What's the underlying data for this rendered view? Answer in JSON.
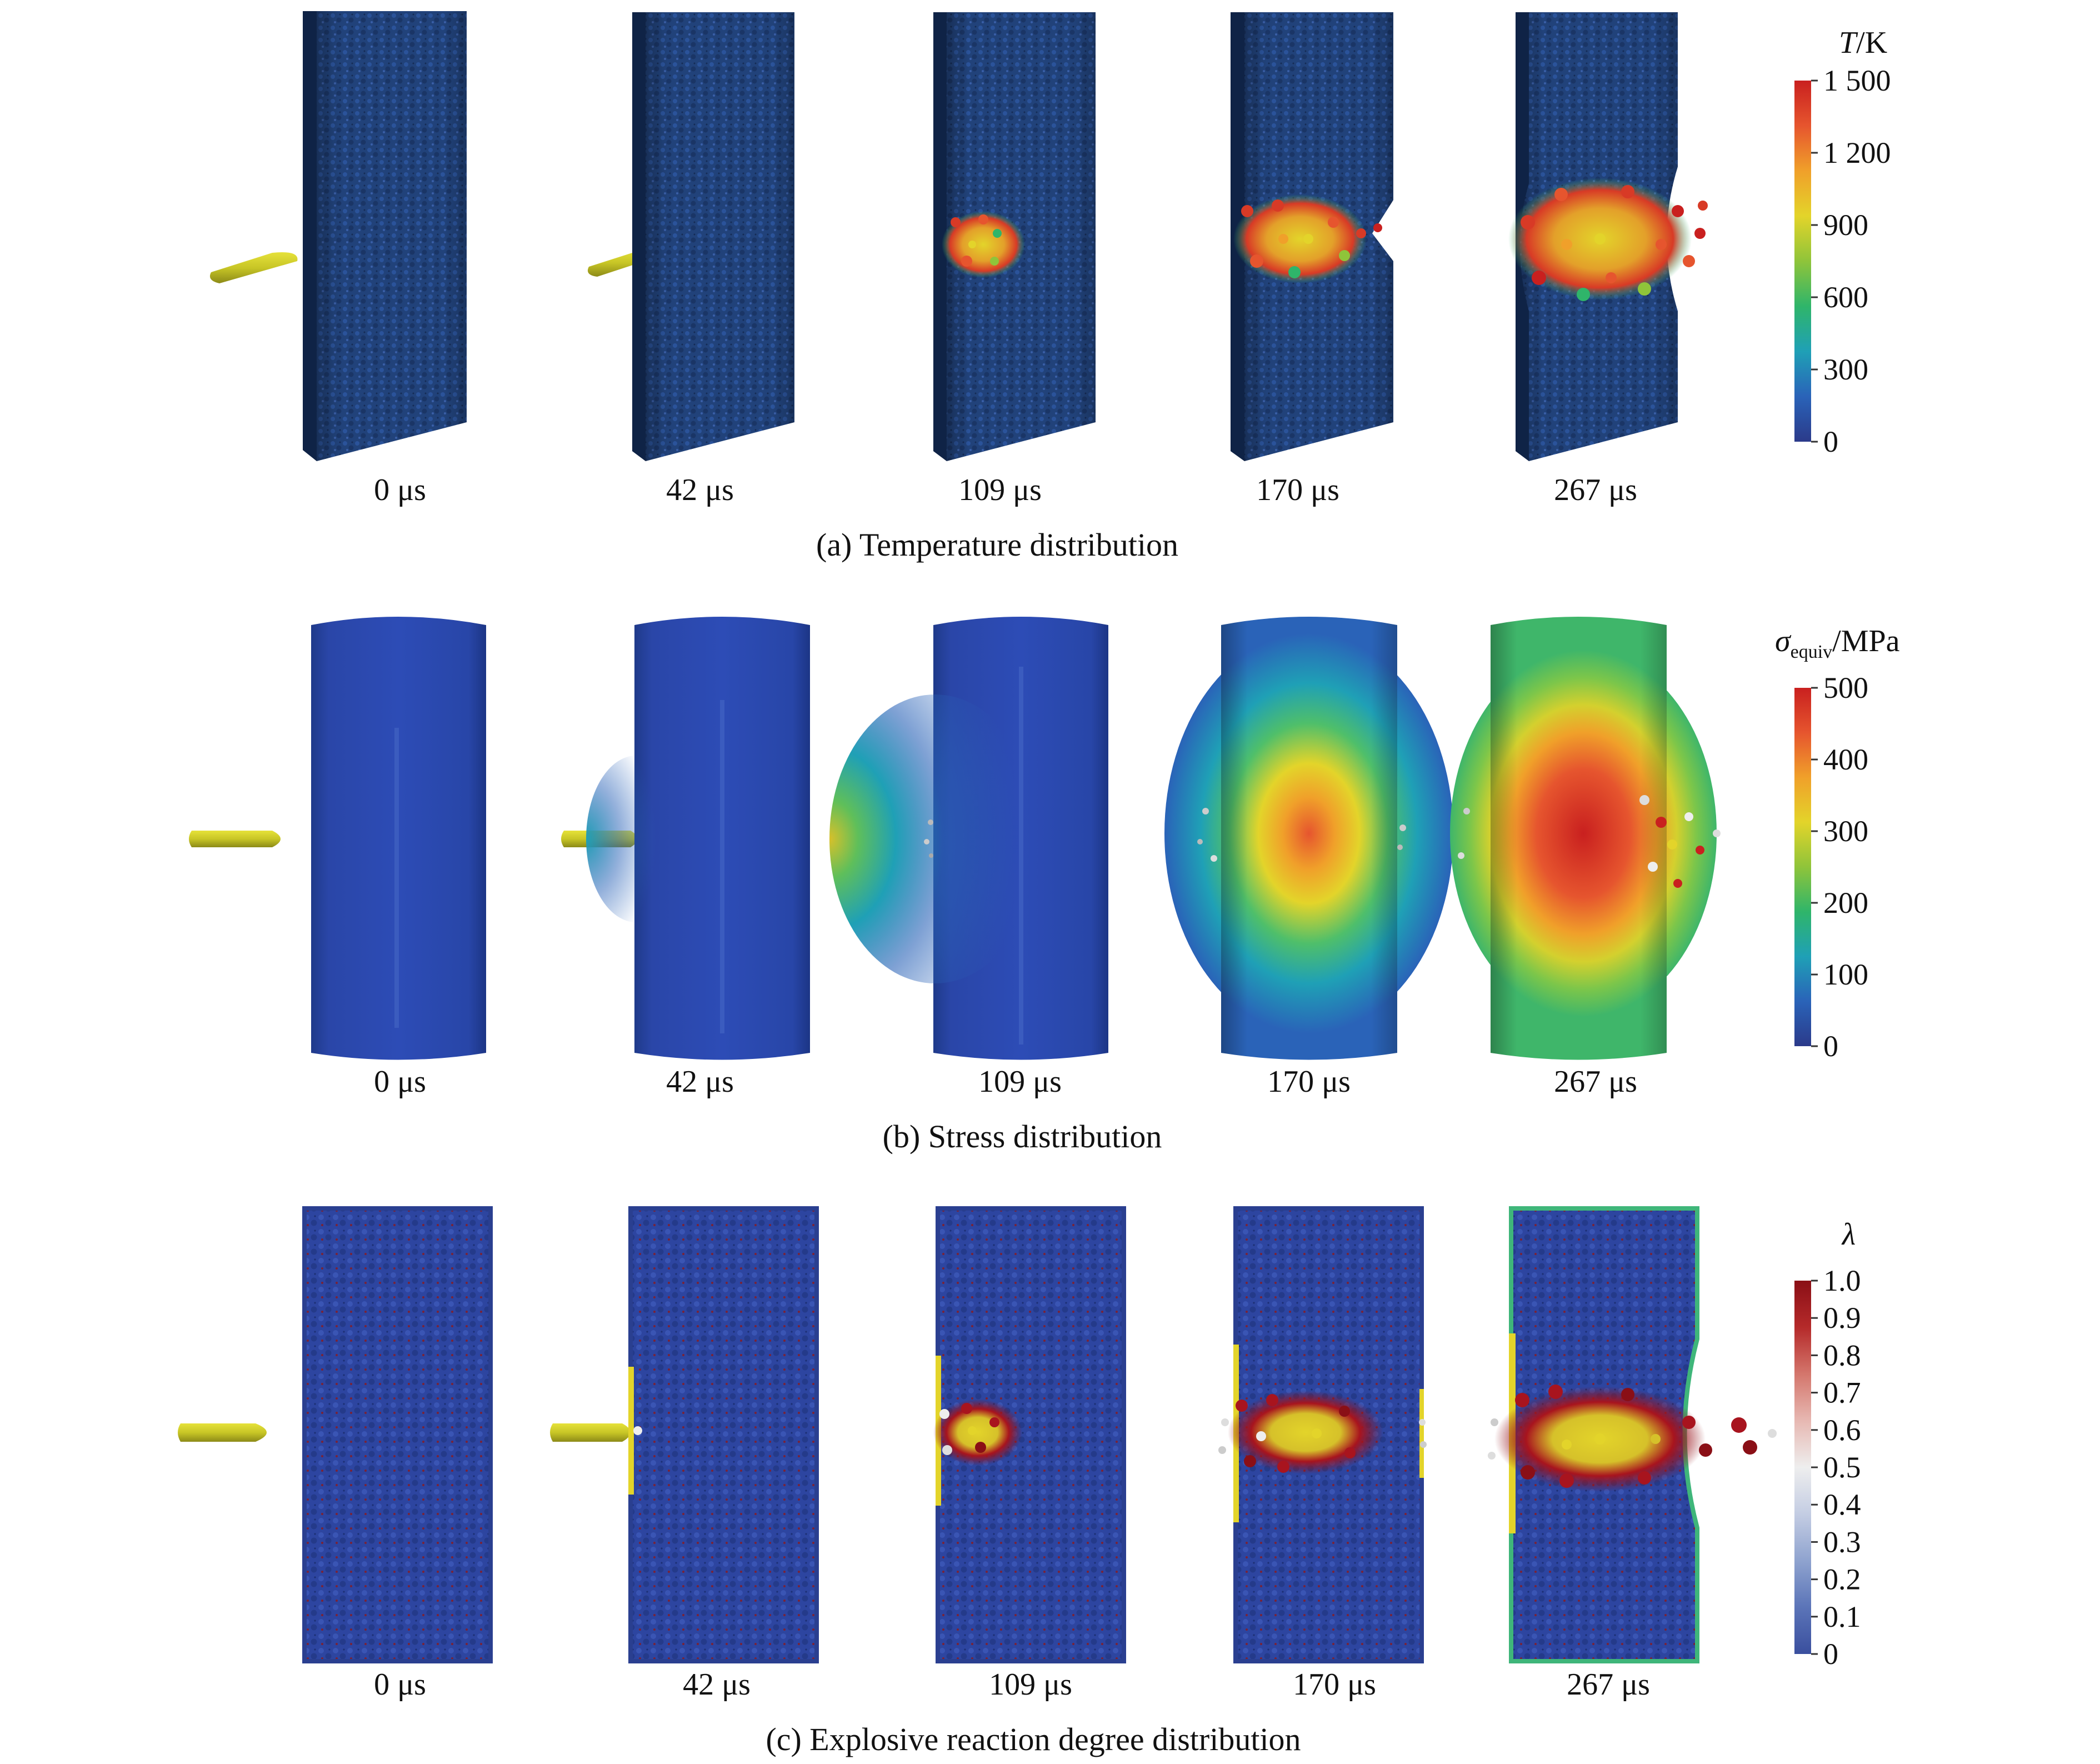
{
  "rows": [
    {
      "caption": "(a) Temperature distribution",
      "times": [
        "0 μs",
        "42 μs",
        "109 μs",
        "170 μs",
        "267 μs"
      ],
      "legend": {
        "title_main": "T",
        "title_suffix": "/K",
        "title_sub": "",
        "ticks": [
          "0",
          "300",
          "600",
          "900",
          "1 200",
          "1 500"
        ],
        "colors": [
          "#2b3a8a",
          "#2a63b8",
          "#1fa0b6",
          "#2fb56a",
          "#8fc43a",
          "#e3d42a",
          "#f0a02a",
          "#e6552e",
          "#c9201f"
        ]
      }
    },
    {
      "caption": "(b) Stress distribution",
      "times": [
        "0 μs",
        "42 μs",
        "109 μs",
        "170 μs",
        "267 μs"
      ],
      "legend": {
        "title_main": "σ",
        "title_suffix": "/MPa",
        "title_sub": "equiv",
        "ticks": [
          "0",
          "100",
          "200",
          "300",
          "400",
          "500"
        ],
        "colors": [
          "#2b3a8a",
          "#2a63b8",
          "#1fa0b6",
          "#2fb56a",
          "#8fc43a",
          "#e3d42a",
          "#f0a02a",
          "#e6552e",
          "#c9201f"
        ]
      }
    },
    {
      "caption": "(c) Explosive reaction degree distribution",
      "times": [
        "0 μs",
        "42 μs",
        "109 μs",
        "170 μs",
        "267 μs"
      ],
      "legend": {
        "title_main": "λ",
        "title_suffix": "",
        "title_sub": "",
        "ticks": [
          "0",
          "0.1",
          "0.2",
          "0.3",
          "0.4",
          "0.5",
          "0.6",
          "0.7",
          "0.8",
          "0.9",
          "1.0"
        ],
        "colors": [
          "#3a4f9e",
          "#5b74b8",
          "#8fa3cf",
          "#c4cde3",
          "#eeeeee",
          "#e7b8b2",
          "#d4766c",
          "#b52a2a",
          "#8a0f16"
        ]
      }
    }
  ]
}
